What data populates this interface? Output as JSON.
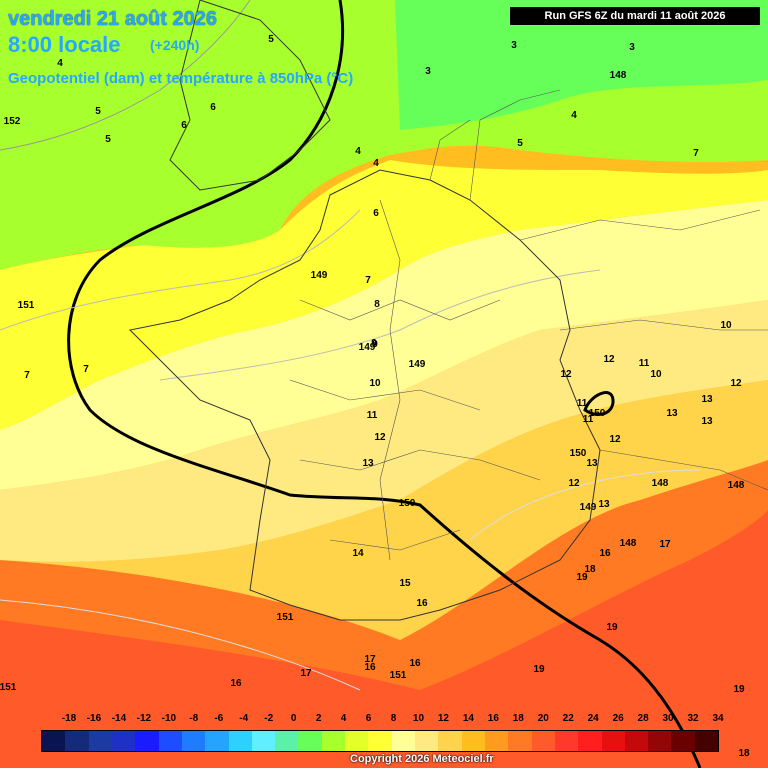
{
  "header": {
    "date": "vendredi 21 août 2026",
    "time": "8:00 locale",
    "lead_time": "(+240h)",
    "subtitle": "Geopotentiel (dam) et température à 850hPa (°C)",
    "run": "Run GFS 6Z du mardi 11 août 2026"
  },
  "footer": {
    "copyright": "Copyright 2026 Meteociel.fr"
  },
  "scale": {
    "ticks": [
      "-18",
      "-16",
      "-14",
      "-12",
      "-10",
      "-8",
      "-6",
      "-4",
      "-2",
      "0",
      "2",
      "4",
      "6",
      "8",
      "10",
      "12",
      "14",
      "16",
      "18",
      "20",
      "22",
      "24",
      "26",
      "28",
      "30",
      "32",
      "34"
    ],
    "colors": [
      "#0a1450",
      "#142a7a",
      "#1c3aa3",
      "#1e30c8",
      "#1b1bff",
      "#1e4cff",
      "#1e7cff",
      "#23a4ff",
      "#2ed0ff",
      "#5ff0ff",
      "#5af2a8",
      "#66ff5a",
      "#a8ff2e",
      "#e3ff2b",
      "#ffff36",
      "#ffff95",
      "#ffe981",
      "#ffd34a",
      "#ffbd1f",
      "#ff9c1f",
      "#ff7a22",
      "#ff5a2a",
      "#ff3a2a",
      "#ff1f1f",
      "#e61010",
      "#c20a0a",
      "#950505",
      "#6b0000",
      "#450000"
    ]
  },
  "labels": {
    "temps": [
      "5",
      "4",
      "5",
      "6",
      "6",
      "5",
      "3",
      "3",
      "3",
      "4",
      "4",
      "4",
      "5",
      "7",
      "6",
      "7",
      "8",
      "9",
      "10",
      "11",
      "12",
      "13",
      "14",
      "15",
      "16",
      "17",
      "16",
      "17",
      "7",
      "7",
      "9",
      "10",
      "11",
      "12",
      "10",
      "12",
      "11",
      "13",
      "13",
      "11",
      "12",
      "12",
      "12",
      "13",
      "13",
      "13",
      "17",
      "16",
      "18",
      "19",
      "19",
      "19",
      "18",
      "19",
      "16",
      "16"
    ],
    "geopot": [
      "152",
      "148",
      "149",
      "151",
      "149",
      "149",
      "150",
      "150",
      "148",
      "148",
      "148",
      "149",
      "150",
      "148",
      "151",
      "151",
      "151"
    ]
  }
}
